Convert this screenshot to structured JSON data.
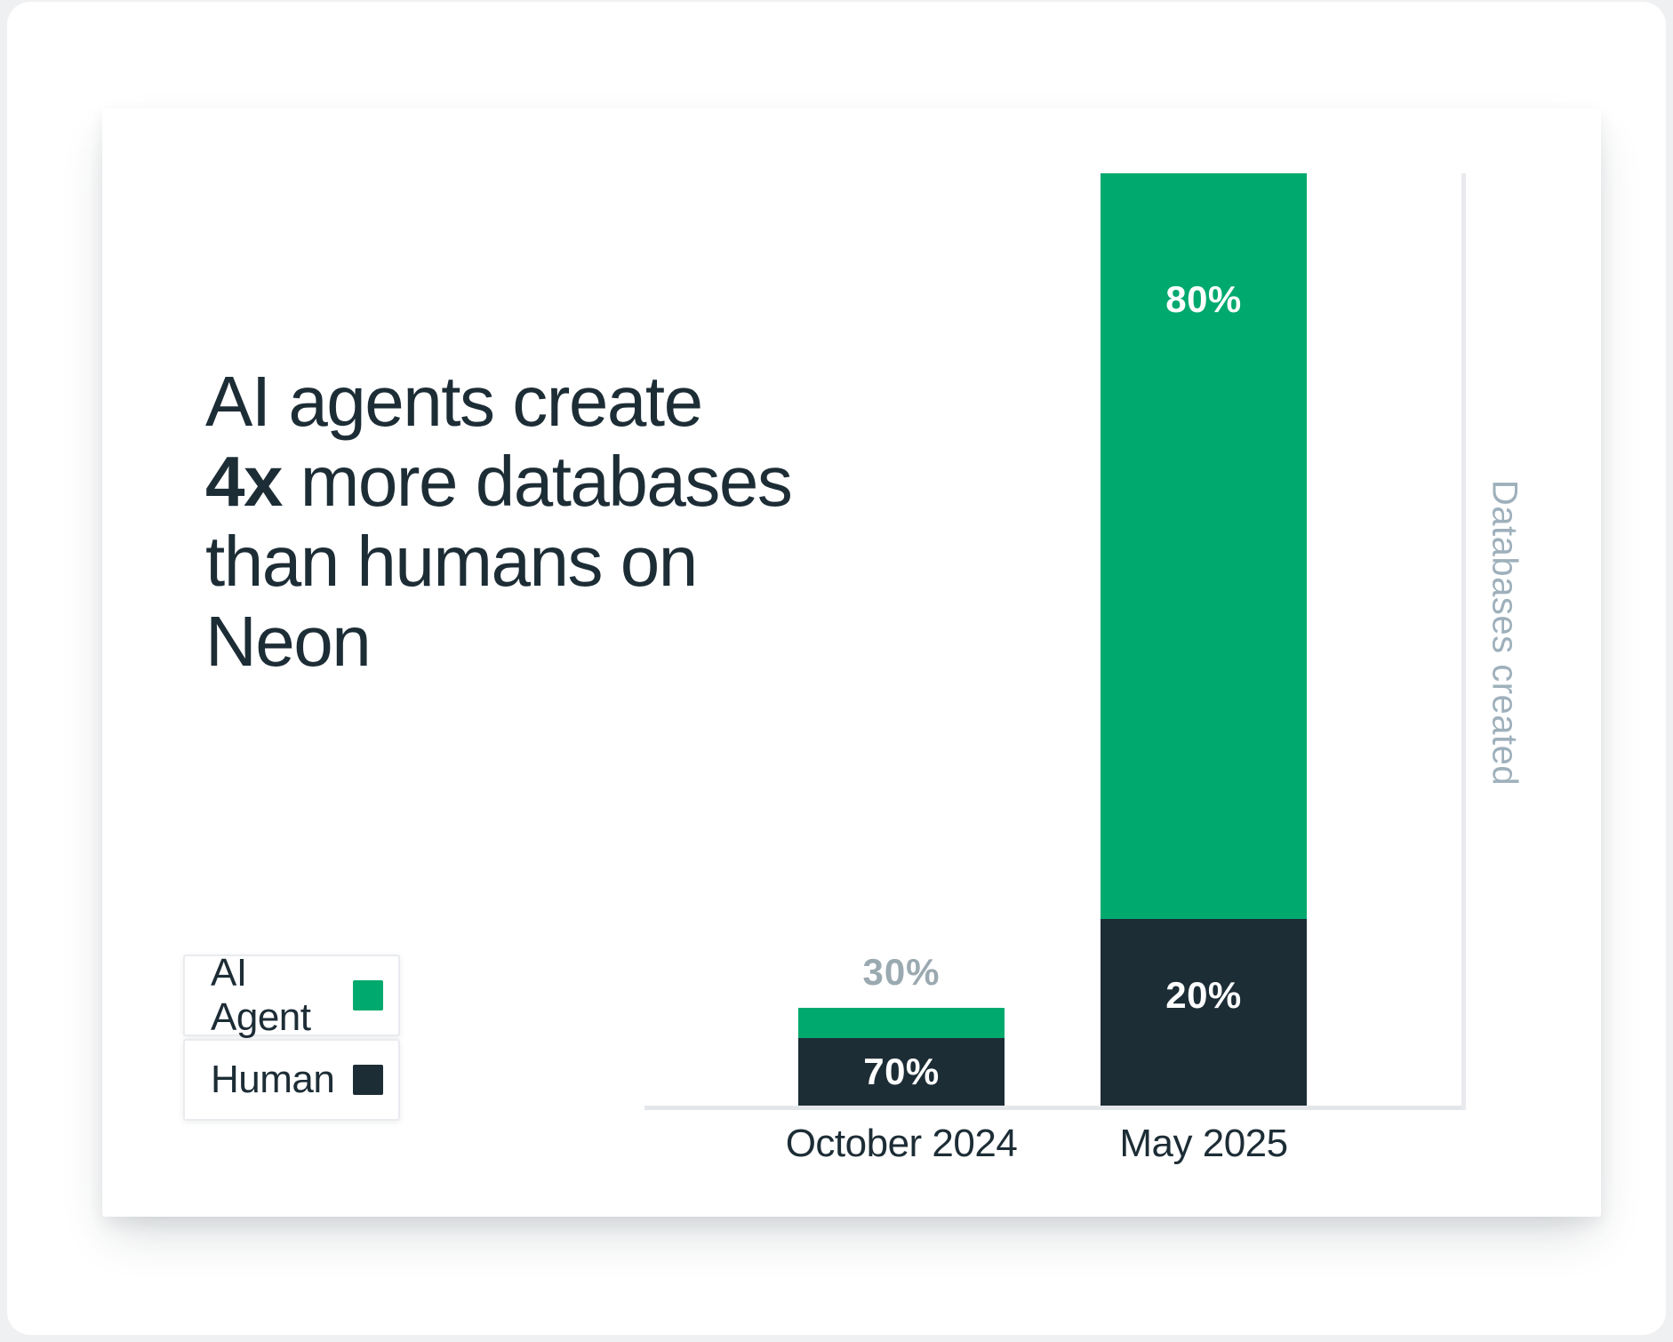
{
  "title_block": {
    "line1": "AI agents create",
    "line2_bold": "4x",
    "line2_rest": " more databases",
    "line3": "than humans on",
    "line4": "Neon"
  },
  "legend": {
    "items": [
      {
        "label": "AI Agent",
        "color": "#00A96E"
      },
      {
        "label": "Human",
        "color": "#1D2D36"
      }
    ]
  },
  "chart_data": {
    "type": "bar",
    "stacked": true,
    "categories": [
      "October 2024",
      "May 2025"
    ],
    "series": [
      {
        "name": "AI Agent",
        "color": "#00A96E",
        "values": [
          30,
          80
        ]
      },
      {
        "name": "Human",
        "color": "#1D2D36",
        "values": [
          70,
          20
        ]
      }
    ],
    "unit": "%",
    "ylabel": "Databases created",
    "bar_labels": {
      "october_ai": "30%",
      "october_human": "70%",
      "may_ai": "80%",
      "may_human": "20%"
    },
    "bar_total_relative_heights": [
      0.105,
      1.0
    ],
    "grid": false,
    "legend_position": "left",
    "value_axis_ticks": "none"
  },
  "colors": {
    "ai_green": "#00A96E",
    "human_dark": "#1D2D36",
    "outside_label_gray": "#9BA9B1",
    "ylabel_gray": "#9EB0BB",
    "axis_line": "#E4E7EA",
    "text_dark": "#1D2D36",
    "page_bg": "#EFF0F2",
    "card_bg": "#FFFFFF"
  }
}
